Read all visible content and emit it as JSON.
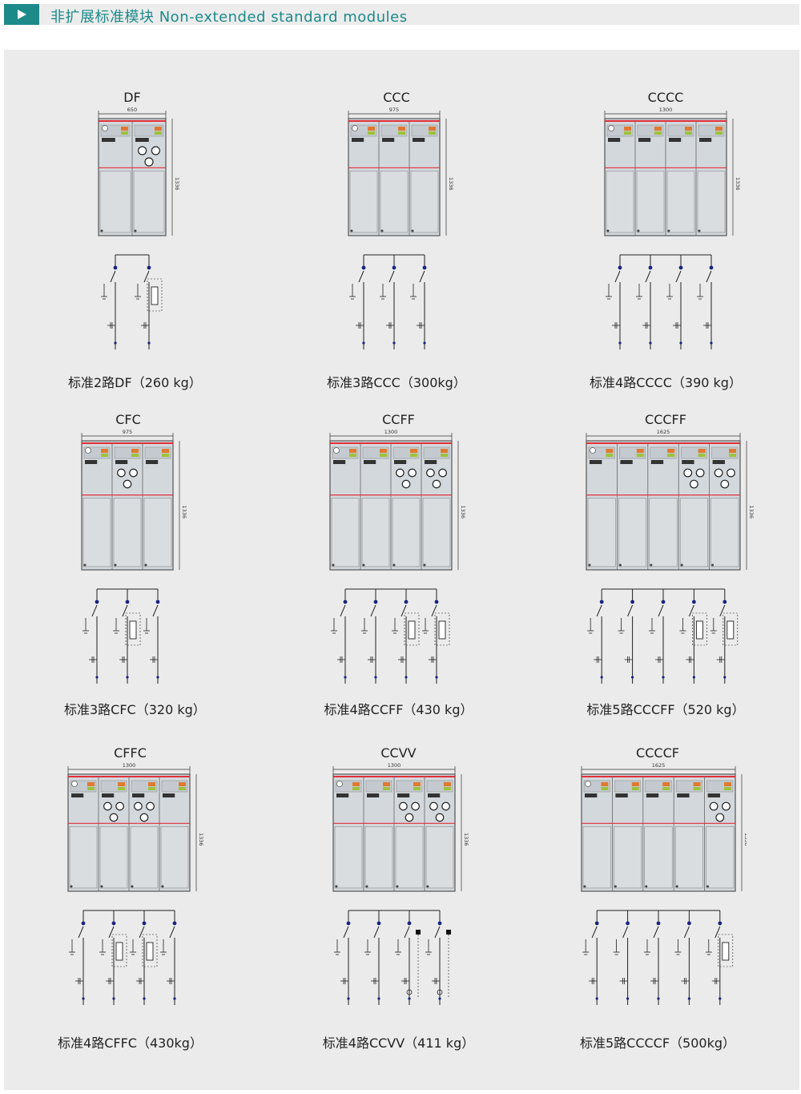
{
  "header": {
    "title": "非扩展标准模块 Non-extended standard modules"
  },
  "modules": [
    {
      "name": "DF",
      "width_label": "650",
      "height_label": "1336",
      "caption": "标准2路DF（260 kg）",
      "units": [
        "D",
        "F"
      ]
    },
    {
      "name": "CCC",
      "width_label": "975",
      "height_label": "1336",
      "caption": "标准3路CCC（300kg）",
      "units": [
        "C",
        "C",
        "C"
      ]
    },
    {
      "name": "CCCC",
      "width_label": "1300",
      "height_label": "1336",
      "caption": "标准4路CCCC（390 kg）",
      "units": [
        "C",
        "C",
        "C",
        "C"
      ]
    },
    {
      "name": "CFC",
      "width_label": "975",
      "height_label": "1336",
      "caption": "标准3路CFC（320 kg）",
      "units": [
        "C",
        "F",
        "C"
      ]
    },
    {
      "name": "CCFF",
      "width_label": "1300",
      "height_label": "1336",
      "caption": "标准4路CCFF（430 kg）",
      "units": [
        "C",
        "C",
        "F",
        "F"
      ]
    },
    {
      "name": "CCCFF",
      "width_label": "1625",
      "height_label": "1336",
      "caption": "标准5路CCCFF（520 kg）",
      "units": [
        "C",
        "C",
        "C",
        "F",
        "F"
      ]
    },
    {
      "name": "CFFC",
      "width_label": "1300",
      "height_label": "1336",
      "caption": "标准4路CFFC（430kg）",
      "units": [
        "C",
        "F",
        "F",
        "C"
      ]
    },
    {
      "name": "CCVV",
      "width_label": "1300",
      "height_label": "1336",
      "caption": "标准4路CCVV（411 kg）",
      "units": [
        "C",
        "C",
        "V",
        "V"
      ]
    },
    {
      "name": "CCCCF",
      "width_label": "1625",
      "height_label": "1336",
      "caption": "标准5路CCCCF（500kg）",
      "units": [
        "C",
        "C",
        "C",
        "C",
        "F"
      ]
    }
  ]
}
